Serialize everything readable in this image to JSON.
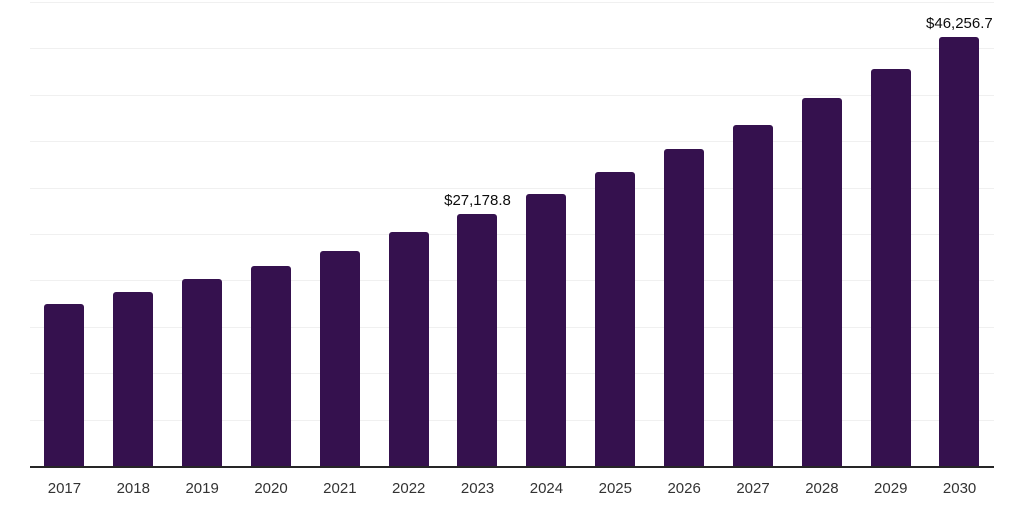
{
  "chart_data": {
    "type": "bar",
    "title": "",
    "xlabel": "",
    "ylabel": "",
    "categories": [
      "2017",
      "2018",
      "2019",
      "2020",
      "2021",
      "2022",
      "2023",
      "2024",
      "2025",
      "2026",
      "2027",
      "2028",
      "2029",
      "2030"
    ],
    "values": [
      17500,
      18700,
      20100,
      21600,
      23200,
      25200,
      27178.8,
      29300,
      31700,
      34200,
      36700,
      39700,
      42800,
      46256.7
    ],
    "data_labels": {
      "2023": "$27,178.8",
      "2030": "$46,256.7"
    },
    "ylim": [
      0,
      50000
    ],
    "gridline_interval": 5000,
    "grid": true,
    "legend": "none",
    "y_axis_tick_labels_visible": false
  },
  "colors": {
    "bar": "#35114e",
    "gridline": "#f0f0f0",
    "axis_line": "#262626",
    "tick_label": "#333333",
    "data_label": "#0d0d0d",
    "background": "#ffffff"
  }
}
